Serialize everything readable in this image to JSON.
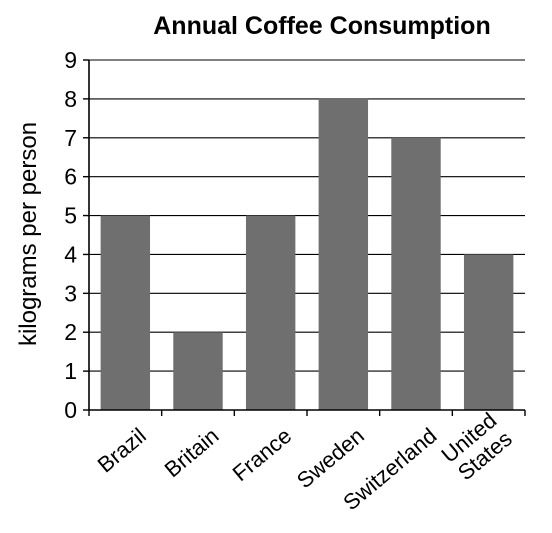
{
  "chart_data": {
    "type": "bar",
    "title": "Annual Coffee Consumption",
    "xlabel": "",
    "ylabel": "kilograms per person",
    "categories": [
      "Brazil",
      "Britain",
      "France",
      "Sweden",
      "Switzerland",
      "United States"
    ],
    "values": [
      5,
      2,
      5,
      8,
      7,
      4
    ],
    "ylim": [
      0,
      9
    ],
    "yticks": [
      "0",
      "1",
      "2",
      "3",
      "4",
      "5",
      "6",
      "7",
      "8",
      "9"
    ],
    "grid": "horizontal",
    "bar_color": "#6f6f6f"
  }
}
